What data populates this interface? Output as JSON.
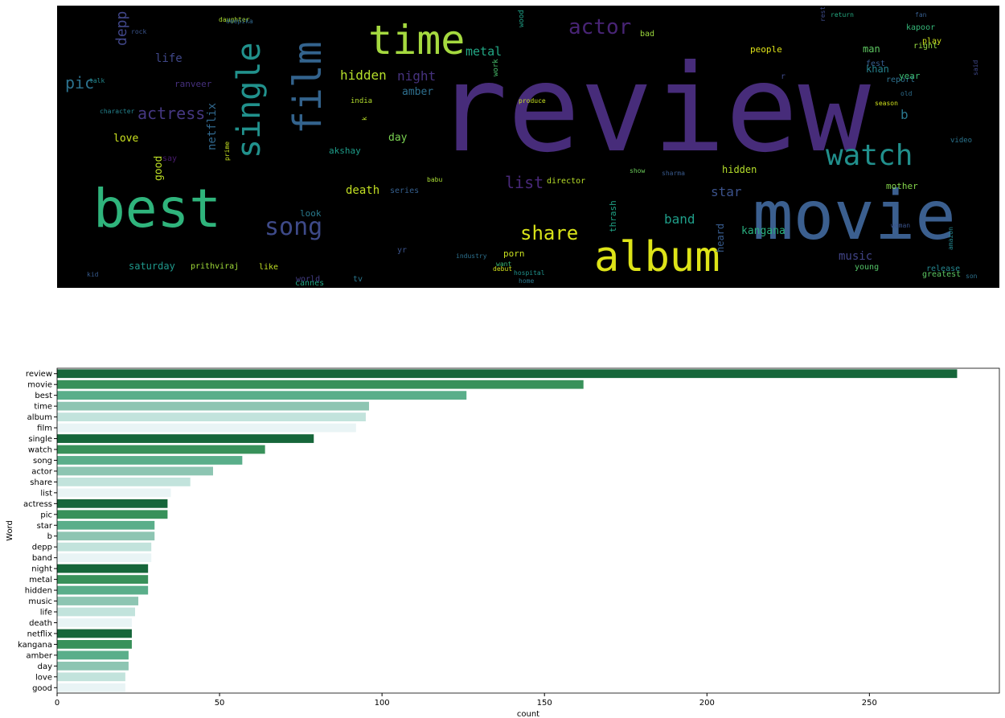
{
  "chart_data": [
    {
      "type": "wordcloud",
      "background": "#000000",
      "words": [
        {
          "text": "review",
          "color": "#472c7a"
        },
        {
          "text": "movie",
          "color": "#3b5f8f"
        },
        {
          "text": "best",
          "color": "#2fb47c"
        },
        {
          "text": "time",
          "color": "#a5d93f"
        },
        {
          "text": "album",
          "color": "#dde318"
        },
        {
          "text": "film",
          "color": "#33638d"
        },
        {
          "text": "single",
          "color": "#21918c"
        },
        {
          "text": "watch",
          "color": "#21908d"
        },
        {
          "text": "song",
          "color": "#3e4a89"
        },
        {
          "text": "actor",
          "color": "#482475"
        },
        {
          "text": "share",
          "color": "#d8e219"
        },
        {
          "text": "list",
          "color": "#482878"
        },
        {
          "text": "actress",
          "color": "#453781"
        },
        {
          "text": "pic",
          "color": "#2c728e"
        },
        {
          "text": "star",
          "color": "#3b528b"
        },
        {
          "text": "b",
          "color": "#2a788e"
        },
        {
          "text": "depp",
          "color": "#404688"
        },
        {
          "text": "band",
          "color": "#1f9e89"
        },
        {
          "text": "night",
          "color": "#46327e"
        },
        {
          "text": "metal",
          "color": "#22a785"
        },
        {
          "text": "hidden",
          "color": "#b5de2b"
        },
        {
          "text": "music",
          "color": "#414487"
        },
        {
          "text": "life",
          "color": "#3f4788"
        },
        {
          "text": "death",
          "color": "#c2df23"
        },
        {
          "text": "netflix",
          "color": "#31688e"
        },
        {
          "text": "kangana",
          "color": "#29af7f"
        },
        {
          "text": "amber",
          "color": "#2e6f8e"
        },
        {
          "text": "day",
          "color": "#7ad151"
        },
        {
          "text": "love",
          "color": "#cae11f"
        },
        {
          "text": "good",
          "color": "#bddf26"
        },
        {
          "text": "saturday",
          "color": "#1f988b"
        },
        {
          "text": "hidden",
          "color": "#b5de2b"
        },
        {
          "text": "heard",
          "color": "#375b8d"
        },
        {
          "text": "thrash",
          "color": "#20a386"
        },
        {
          "text": "khan",
          "color": "#26828e"
        },
        {
          "text": "porn",
          "color": "#c8e020"
        },
        {
          "text": "man",
          "color": "#5ec962"
        },
        {
          "text": "fest",
          "color": "#365c8d"
        },
        {
          "text": "report",
          "color": "#2d708e"
        },
        {
          "text": "year",
          "color": "#3dbc74"
        },
        {
          "text": "people",
          "color": "#dfe318"
        },
        {
          "text": "mother",
          "color": "#84d44b"
        },
        {
          "text": "look",
          "color": "#297b8e"
        },
        {
          "text": "tv",
          "color": "#2a768e"
        },
        {
          "text": "series",
          "color": "#355f8d"
        },
        {
          "text": "cannes",
          "color": "#21a685"
        },
        {
          "text": "say",
          "color": "#481c6e"
        },
        {
          "text": "ranveer",
          "color": "#46307e"
        },
        {
          "text": "akshay",
          "color": "#1e9c89"
        },
        {
          "text": "director",
          "color": "#b8de29"
        },
        {
          "text": "prithviraj",
          "color": "#a0da39"
        },
        {
          "text": "like",
          "color": "#c0df25"
        },
        {
          "text": "world",
          "color": "#433d84"
        },
        {
          "text": "yr",
          "color": "#3b528b"
        },
        {
          "text": "play",
          "color": "#cde11d"
        },
        {
          "text": "greatest",
          "color": "#5cc863"
        },
        {
          "text": "release",
          "color": "#25858e"
        },
        {
          "text": "young",
          "color": "#54c568"
        },
        {
          "text": "right",
          "color": "#95d840"
        },
        {
          "text": "kapoor",
          "color": "#35b779"
        },
        {
          "text": "work",
          "color": "#4ac16d"
        },
        {
          "text": "india",
          "color": "#b2dd2d"
        },
        {
          "text": "daughter",
          "color": "#aadc32"
        },
        {
          "text": "deepika",
          "color": "#31688e"
        },
        {
          "text": "rock",
          "color": "#3a548c"
        },
        {
          "text": "wood",
          "color": "#1fa187"
        },
        {
          "text": "bad",
          "color": "#9bd93c"
        },
        {
          "text": "r",
          "color": "#3e4989"
        },
        {
          "text": "video",
          "color": "#2b748e"
        },
        {
          "text": "industry",
          "color": "#2d718e"
        },
        {
          "text": "home",
          "color": "#2a788e"
        },
        {
          "text": "son",
          "color": "#2c728e"
        },
        {
          "text": "amazon",
          "color": "#24868e"
        },
        {
          "text": "season",
          "color": "#cfe11c"
        },
        {
          "text": "woman",
          "color": "#3a538b"
        },
        {
          "text": "kid",
          "color": "#375a8c"
        },
        {
          "text": "babu",
          "color": "#a8db34"
        },
        {
          "text": "show",
          "color": "#6ccd5a"
        },
        {
          "text": "sharma",
          "color": "#38598c"
        },
        {
          "text": "talk",
          "color": "#23898e"
        },
        {
          "text": "character",
          "color": "#25838e"
        },
        {
          "text": "prime",
          "color": "#c5e021"
        },
        {
          "text": "old",
          "color": "#2e6e8e"
        },
        {
          "text": "said",
          "color": "#3f4889"
        },
        {
          "text": "fan",
          "color": "#365d8d"
        },
        {
          "text": "hospital",
          "color": "#20928c"
        },
        {
          "text": "k",
          "color": "#bade28"
        },
        {
          "text": "debut",
          "color": "#d2e21b"
        },
        {
          "text": "restless",
          "color": "#3e4c8a"
        },
        {
          "text": "produce",
          "color": "#c6e021"
        },
        {
          "text": "return",
          "color": "#25ab82"
        },
        {
          "text": "want",
          "color": "#38b977"
        }
      ]
    },
    {
      "type": "bar",
      "orientation": "horizontal",
      "categories": [
        "review",
        "movie",
        "best",
        "time",
        "album",
        "film",
        "single",
        "watch",
        "song",
        "actor",
        "share",
        "list",
        "actress",
        "pic",
        "star",
        "b",
        "depp",
        "band",
        "night",
        "metal",
        "hidden",
        "music",
        "life",
        "death",
        "netflix",
        "kangana",
        "amber",
        "day",
        "love",
        "good"
      ],
      "values": [
        277,
        162,
        126,
        96,
        95,
        92,
        79,
        64,
        57,
        48,
        41,
        35,
        34,
        34,
        30,
        30,
        29,
        29,
        28,
        28,
        28,
        25,
        24,
        23,
        23,
        23,
        22,
        22,
        21,
        21
      ],
      "palette": [
        "#16663a",
        "#38915a",
        "#5aae8a",
        "#8dc5b2",
        "#c2e3dc",
        "#e9f4f5"
      ],
      "xlabel": "count",
      "ylabel": "Word",
      "xlim": [
        0,
        290
      ],
      "xticks": [
        0,
        50,
        100,
        150,
        200,
        250
      ]
    }
  ]
}
